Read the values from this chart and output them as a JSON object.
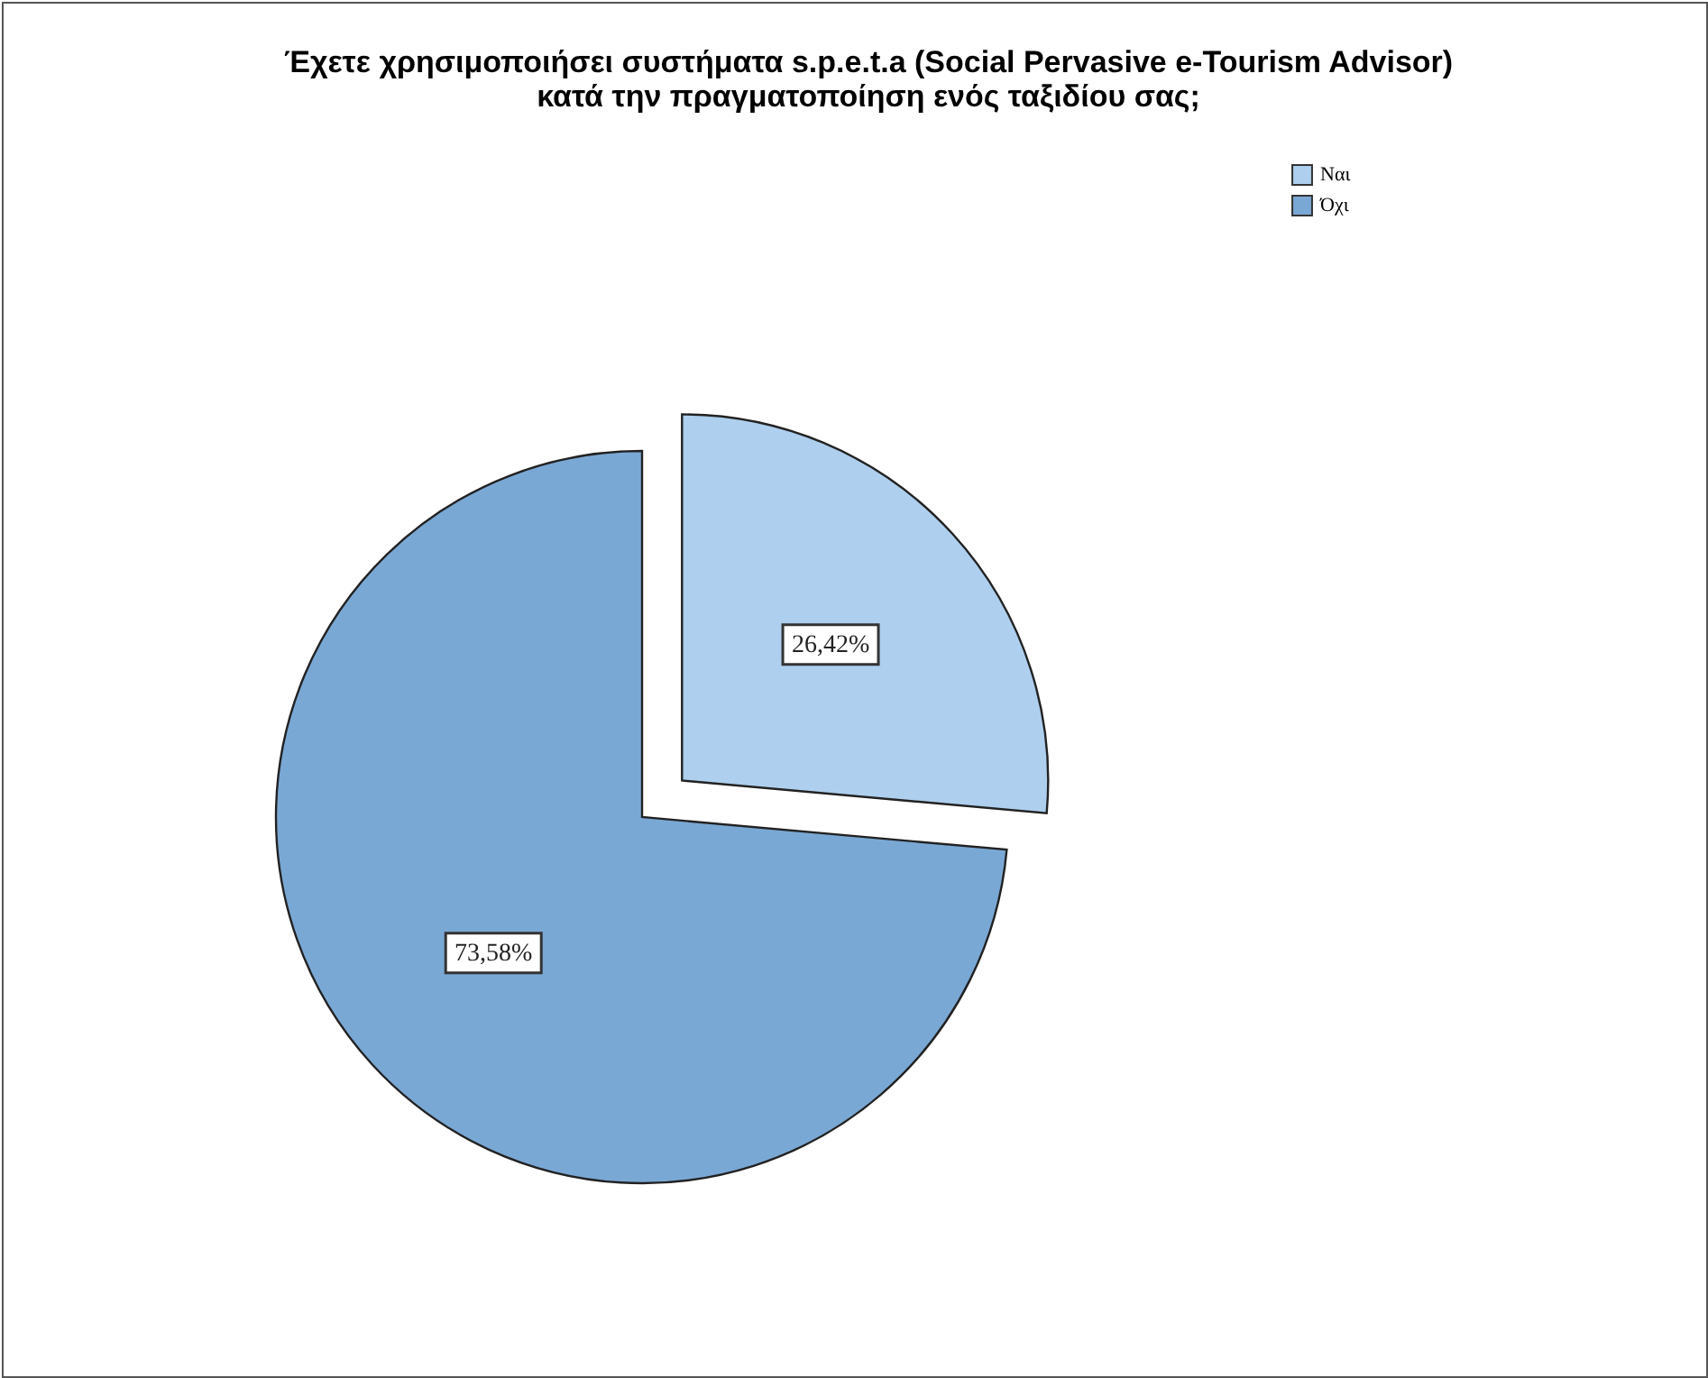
{
  "chart_data": {
    "type": "pie",
    "title": "Έχετε χρησιμοποιήσει συστήματα s.p.e.t.a (Social Pervasive e-Tourism Advisor)\nκατά την πραγματοποίηση ενός ταξιδίου σας;",
    "categories": [
      "Ναι",
      "Όχι"
    ],
    "values": [
      26.42,
      73.58
    ],
    "colors": [
      "#aecfee",
      "#7aa8d5"
    ],
    "value_labels": [
      "26,42%",
      "73,58%"
    ],
    "legend": "top right"
  }
}
